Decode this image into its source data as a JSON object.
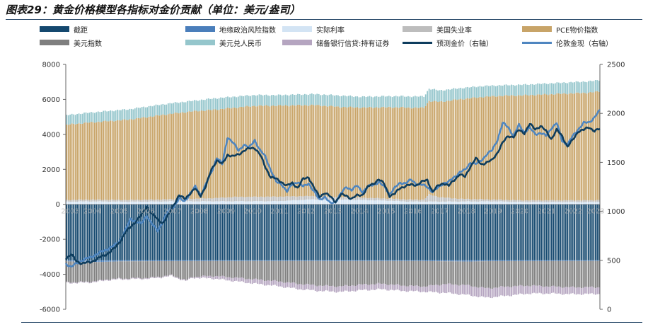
{
  "title": "图表29：黄金价格模型各指标对金价贡献（单位：美元/盎司）",
  "chart_data": {
    "type": "bar",
    "stacked": true,
    "title": "图表29：黄金价格模型各指标对金价贡献（单位：美元/盎司）",
    "legend": [
      {
        "name": "截距",
        "color": "#14486e",
        "kind": "bar"
      },
      {
        "name": "地缘政治风险指数",
        "color": "#4a7ebb",
        "kind": "bar"
      },
      {
        "name": "实际利率",
        "color": "#d3e4f4",
        "kind": "bar"
      },
      {
        "name": "美国失业率",
        "color": "#bdbdbd",
        "kind": "bar"
      },
      {
        "name": "PCE物价指数",
        "color": "#c8a468",
        "kind": "bar"
      },
      {
        "name": "美元指数",
        "color": "#7f7f7f",
        "kind": "bar"
      },
      {
        "name": "美元兑人民币",
        "color": "#95c6cc",
        "kind": "bar"
      },
      {
        "name": "储备银行信贷:持有证券",
        "color": "#b5a5c0",
        "kind": "bar"
      },
      {
        "name": "预测金价（右轴）",
        "color": "#0e3d5e",
        "kind": "line"
      },
      {
        "name": "伦敦金现（右轴）",
        "color": "#4f86c0",
        "kind": "line"
      }
    ],
    "x_tick_labels": [
      "2003",
      "2004",
      "2005",
      "2006",
      "2007",
      "2008",
      "2009",
      "2010",
      "2011",
      "2012",
      "2013",
      "2014",
      "2015",
      "2016",
      "2017",
      "2018",
      "2019",
      "2020",
      "2021",
      "2022",
      "2023"
    ],
    "y_left": {
      "ticks": [
        "8000",
        "6000",
        "4000",
        "2000",
        "0",
        "-2000",
        "-4000",
        "-6000"
      ],
      "range": [
        -6000,
        8000
      ]
    },
    "y_right": {
      "ticks": [
        "2500",
        "2000",
        "1500",
        "1000",
        "500",
        "0"
      ],
      "range": [
        0,
        2500
      ]
    },
    "positive_stack_components": {
      "实际利率": [
        [
          0,
          150
        ],
        [
          12,
          170
        ],
        [
          35,
          150
        ],
        [
          63,
          170
        ],
        [
          120,
          180
        ],
        [
          140,
          280
        ],
        [
          168,
          250
        ],
        [
          184,
          210
        ],
        [
          195,
          160
        ],
        [
          220,
          160
        ],
        [
          245,
          170
        ],
        [
          260,
          130
        ],
        [
          300,
          130
        ],
        [
          304,
          150
        ]
      ],
      "美国失业率": [
        [
          0,
          100
        ],
        [
          35,
          100
        ],
        [
          63,
          120
        ],
        [
          84,
          180
        ],
        [
          96,
          250
        ],
        [
          120,
          260
        ],
        [
          144,
          180
        ],
        [
          168,
          130
        ],
        [
          204,
          110
        ],
        [
          207,
          400
        ],
        [
          213,
          250
        ],
        [
          225,
          150
        ],
        [
          245,
          100
        ],
        [
          304,
          100
        ]
      ],
      "PCE物价指数": [
        [
          0,
          4300
        ],
        [
          12,
          4400
        ],
        [
          24,
          4500
        ],
        [
          36,
          4600
        ],
        [
          48,
          4750
        ],
        [
          60,
          4900
        ],
        [
          72,
          5000
        ],
        [
          84,
          5050
        ],
        [
          96,
          5100
        ],
        [
          108,
          5200
        ],
        [
          120,
          5200
        ],
        [
          132,
          5200
        ],
        [
          144,
          5200
        ],
        [
          156,
          5150
        ],
        [
          168,
          5150
        ],
        [
          180,
          5200
        ],
        [
          192,
          5250
        ],
        [
          204,
          5250
        ],
        [
          207,
          5350
        ],
        [
          213,
          5450
        ],
        [
          225,
          5700
        ],
        [
          237,
          5850
        ],
        [
          249,
          5950
        ],
        [
          261,
          6000
        ],
        [
          273,
          6050
        ],
        [
          285,
          6100
        ],
        [
          297,
          6150
        ],
        [
          304,
          6200
        ]
      ],
      "美元兑人民币": [
        [
          0,
          550
        ],
        [
          24,
          580
        ],
        [
          48,
          600
        ],
        [
          72,
          600
        ],
        [
          84,
          650
        ],
        [
          120,
          600
        ],
        [
          156,
          650
        ],
        [
          168,
          620
        ],
        [
          204,
          650
        ],
        [
          207,
          700
        ],
        [
          213,
          650
        ],
        [
          237,
          620
        ],
        [
          249,
          600
        ],
        [
          304,
          650
        ]
      ]
    },
    "negative_stack_components": {
      "截距": [
        [
          0,
          -3200
        ],
        [
          304,
          -3200
        ]
      ],
      "地缘政治风险指数": [
        [
          0,
          -60
        ],
        [
          10,
          -80
        ],
        [
          18,
          -100
        ],
        [
          30,
          -60
        ],
        [
          50,
          -50
        ],
        [
          100,
          -40
        ],
        [
          200,
          -40
        ],
        [
          230,
          -70
        ],
        [
          240,
          -50
        ],
        [
          304,
          -40
        ]
      ],
      "美元指数": [
        [
          0,
          -1200
        ],
        [
          12,
          -1150
        ],
        [
          24,
          -1000
        ],
        [
          48,
          -950
        ],
        [
          60,
          -800
        ],
        [
          68,
          -1100
        ],
        [
          72,
          -900
        ],
        [
          84,
          -850
        ],
        [
          96,
          -950
        ],
        [
          108,
          -1050
        ],
        [
          120,
          -1150
        ],
        [
          132,
          -1300
        ],
        [
          144,
          -1400
        ],
        [
          156,
          -1450
        ],
        [
          168,
          -1350
        ],
        [
          180,
          -1300
        ],
        [
          192,
          -1400
        ],
        [
          204,
          -1450
        ],
        [
          216,
          -1300
        ],
        [
          228,
          -1350
        ],
        [
          240,
          -1550
        ],
        [
          252,
          -1450
        ],
        [
          264,
          -1400
        ],
        [
          276,
          -1450
        ],
        [
          288,
          -1500
        ],
        [
          304,
          -1500
        ]
      ],
      "储备银行信贷:持有证券": [
        [
          0,
          -40
        ],
        [
          72,
          -50
        ],
        [
          84,
          -150
        ],
        [
          108,
          -250
        ],
        [
          132,
          -300
        ],
        [
          168,
          -320
        ],
        [
          204,
          -300
        ],
        [
          216,
          -500
        ],
        [
          228,
          -550
        ],
        [
          252,
          -520
        ],
        [
          264,
          -450
        ],
        [
          276,
          -400
        ],
        [
          304,
          -380
        ]
      ]
    },
    "series_right_axis": [
      {
        "name": "预测金价（右轴）",
        "points": [
          [
            0,
            520
          ],
          [
            4,
            560
          ],
          [
            8,
            490
          ],
          [
            12,
            470
          ],
          [
            18,
            480
          ],
          [
            24,
            520
          ],
          [
            30,
            560
          ],
          [
            36,
            620
          ],
          [
            40,
            690
          ],
          [
            44,
            780
          ],
          [
            48,
            840
          ],
          [
            52,
            900
          ],
          [
            56,
            960
          ],
          [
            60,
            1050
          ],
          [
            64,
            970
          ],
          [
            68,
            920
          ],
          [
            72,
            880
          ],
          [
            76,
            960
          ],
          [
            80,
            1070
          ],
          [
            84,
            1160
          ],
          [
            88,
            1130
          ],
          [
            92,
            1180
          ],
          [
            96,
            1230
          ],
          [
            100,
            1160
          ],
          [
            104,
            1260
          ],
          [
            108,
            1430
          ],
          [
            112,
            1520
          ],
          [
            116,
            1480
          ],
          [
            120,
            1580
          ],
          [
            124,
            1560
          ],
          [
            128,
            1580
          ],
          [
            132,
            1620
          ],
          [
            136,
            1640
          ],
          [
            140,
            1650
          ],
          [
            144,
            1580
          ],
          [
            148,
            1450
          ],
          [
            152,
            1350
          ],
          [
            156,
            1330
          ],
          [
            160,
            1300
          ],
          [
            164,
            1260
          ],
          [
            168,
            1290
          ],
          [
            172,
            1240
          ],
          [
            176,
            1330
          ],
          [
            180,
            1350
          ],
          [
            184,
            1240
          ],
          [
            188,
            1150
          ],
          [
            192,
            1190
          ],
          [
            196,
            1150
          ],
          [
            200,
            1100
          ],
          [
            204,
            1170
          ],
          [
            208,
            1160
          ],
          [
            212,
            1130
          ],
          [
            216,
            1160
          ],
          [
            220,
            1170
          ],
          [
            224,
            1250
          ],
          [
            228,
            1280
          ],
          [
            232,
            1330
          ],
          [
            236,
            1280
          ],
          [
            240,
            1160
          ],
          [
            244,
            1180
          ],
          [
            248,
            1240
          ],
          [
            252,
            1260
          ],
          [
            256,
            1270
          ],
          [
            260,
            1270
          ],
          [
            264,
            1300
          ],
          [
            268,
            1320
          ],
          [
            272,
            1200
          ],
          [
            276,
            1260
          ],
          [
            280,
            1290
          ],
          [
            284,
            1260
          ],
          [
            288,
            1320
          ],
          [
            292,
            1380
          ],
          [
            296,
            1350
          ],
          [
            300,
            1460
          ],
          [
            304,
            1540
          ],
          [
            308,
            1480
          ],
          [
            312,
            1500
          ],
          [
            316,
            1520
          ],
          [
            320,
            1600
          ],
          [
            324,
            1700
          ],
          [
            328,
            1770
          ],
          [
            332,
            1760
          ],
          [
            336,
            1830
          ],
          [
            340,
            1800
          ],
          [
            344,
            1890
          ],
          [
            348,
            1840
          ],
          [
            352,
            1870
          ],
          [
            356,
            1820
          ],
          [
            360,
            1740
          ],
          [
            364,
            1830
          ],
          [
            368,
            1770
          ],
          [
            372,
            1660
          ],
          [
            376,
            1730
          ],
          [
            380,
            1820
          ],
          [
            384,
            1830
          ],
          [
            388,
            1860
          ],
          [
            392,
            1820
          ],
          [
            396,
            1840
          ]
        ]
      },
      {
        "name": "伦敦金现（右轴）",
        "points": [
          [
            0,
            470
          ],
          [
            4,
            430
          ],
          [
            8,
            470
          ],
          [
            12,
            500
          ],
          [
            18,
            530
          ],
          [
            24,
            570
          ],
          [
            30,
            610
          ],
          [
            36,
            650
          ],
          [
            40,
            700
          ],
          [
            44,
            800
          ],
          [
            48,
            920
          ],
          [
            52,
            900
          ],
          [
            56,
            870
          ],
          [
            60,
            960
          ],
          [
            64,
            870
          ],
          [
            68,
            800
          ],
          [
            72,
            900
          ],
          [
            76,
            1000
          ],
          [
            80,
            1050
          ],
          [
            84,
            1130
          ],
          [
            88,
            1100
          ],
          [
            92,
            1180
          ],
          [
            96,
            1250
          ],
          [
            100,
            1170
          ],
          [
            104,
            1280
          ],
          [
            108,
            1400
          ],
          [
            112,
            1550
          ],
          [
            116,
            1480
          ],
          [
            120,
            1760
          ],
          [
            124,
            1700
          ],
          [
            128,
            1620
          ],
          [
            132,
            1680
          ],
          [
            136,
            1650
          ],
          [
            140,
            1730
          ],
          [
            144,
            1620
          ],
          [
            148,
            1560
          ],
          [
            152,
            1420
          ],
          [
            156,
            1300
          ],
          [
            160,
            1280
          ],
          [
            164,
            1200
          ],
          [
            168,
            1280
          ],
          [
            172,
            1300
          ],
          [
            176,
            1250
          ],
          [
            180,
            1290
          ],
          [
            184,
            1200
          ],
          [
            188,
            1120
          ],
          [
            192,
            1150
          ],
          [
            196,
            1080
          ],
          [
            200,
            1100
          ],
          [
            204,
            1180
          ],
          [
            208,
            1250
          ],
          [
            212,
            1220
          ],
          [
            216,
            1260
          ],
          [
            220,
            1200
          ],
          [
            224,
            1250
          ],
          [
            228,
            1270
          ],
          [
            232,
            1300
          ],
          [
            236,
            1250
          ],
          [
            240,
            1180
          ],
          [
            244,
            1240
          ],
          [
            248,
            1290
          ],
          [
            252,
            1290
          ],
          [
            256,
            1320
          ],
          [
            260,
            1280
          ],
          [
            264,
            1270
          ],
          [
            268,
            1250
          ],
          [
            272,
            1200
          ],
          [
            276,
            1240
          ],
          [
            280,
            1290
          ],
          [
            284,
            1300
          ],
          [
            288,
            1350
          ],
          [
            292,
            1400
          ],
          [
            296,
            1420
          ],
          [
            300,
            1500
          ],
          [
            304,
            1480
          ],
          [
            308,
            1520
          ],
          [
            312,
            1580
          ],
          [
            316,
            1620
          ],
          [
            320,
            1730
          ],
          [
            324,
            1900
          ],
          [
            328,
            1860
          ],
          [
            332,
            1770
          ],
          [
            336,
            1880
          ],
          [
            340,
            1810
          ],
          [
            344,
            1850
          ],
          [
            348,
            1790
          ],
          [
            352,
            1800
          ],
          [
            356,
            1770
          ],
          [
            360,
            1850
          ],
          [
            364,
            1900
          ],
          [
            368,
            1720
          ],
          [
            372,
            1680
          ],
          [
            376,
            1770
          ],
          [
            380,
            1840
          ],
          [
            384,
            1900
          ],
          [
            388,
            1910
          ],
          [
            392,
            1960
          ],
          [
            396,
            2030
          ]
        ]
      }
    ],
    "n_bars": 305,
    "n_line_points": 397
  }
}
